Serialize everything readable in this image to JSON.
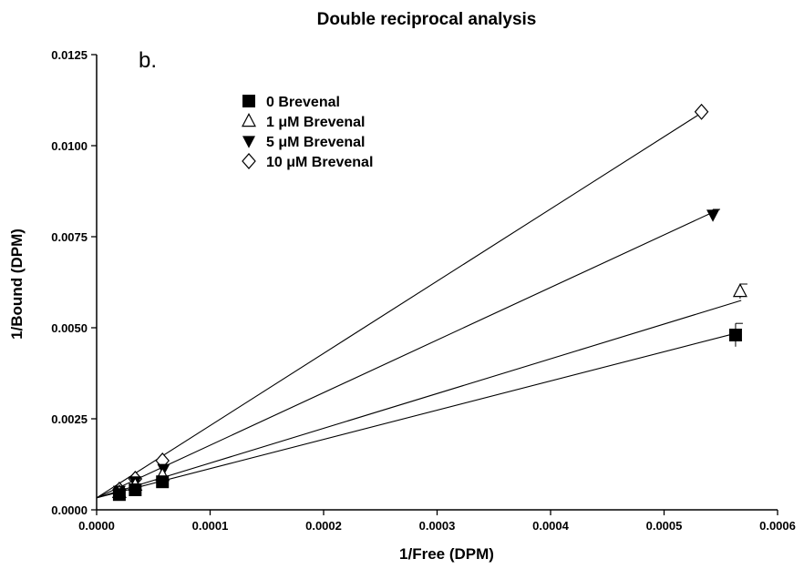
{
  "chart_data": {
    "type": "scatter",
    "title": "Double reciprocal analysis",
    "panel_label": "b.",
    "xlabel": "1/Free (DPM)",
    "ylabel": "1/Bound (DPM)",
    "xlim": [
      0,
      0.0006
    ],
    "ylim": [
      0,
      0.0125
    ],
    "x_ticks": [
      "0.0000",
      "0.0001",
      "0.0002",
      "0.0003",
      "0.0004",
      "0.0005",
      "0.0006"
    ],
    "y_ticks": [
      "0.0000",
      "0.0025",
      "0.0050",
      "0.0075",
      "0.0100",
      "0.0125"
    ],
    "grid": false,
    "legend_position": "top-left",
    "series": [
      {
        "name": "0 Brevenal",
        "marker": "filled-square",
        "points": [
          {
            "x": 2e-05,
            "y": 0.00042
          },
          {
            "x": 3.4e-05,
            "y": 0.00055
          },
          {
            "x": 5.8e-05,
            "y": 0.00077
          },
          {
            "x": 0.000563,
            "y": 0.0048,
            "err": 0.00032
          }
        ],
        "fit": {
          "x0": 0,
          "y0": 0.00033,
          "x1": 0.000566,
          "y1": 0.00487
        }
      },
      {
        "name": "1 μM Brevenal",
        "marker": "open-triangle-up",
        "points": [
          {
            "x": 2e-05,
            "y": 0.00048
          },
          {
            "x": 3.4e-05,
            "y": 0.00068
          },
          {
            "x": 5.8e-05,
            "y": 0.00095
          },
          {
            "x": 0.000567,
            "y": 0.006,
            "err": 0.0002
          }
        ],
        "fit": {
          "x0": 0,
          "y0": 0.00033,
          "x1": 0.000568,
          "y1": 0.00575
        }
      },
      {
        "name": "5 μM Brevenal",
        "marker": "filled-triangle-down",
        "points": [
          {
            "x": 2e-05,
            "y": 0.00052
          },
          {
            "x": 3.4e-05,
            "y": 0.00078
          },
          {
            "x": 5.9e-05,
            "y": 0.00112
          },
          {
            "x": 0.000543,
            "y": 0.0081,
            "err": 0.00015
          }
        ],
        "fit": {
          "x0": 0,
          "y0": 0.00033,
          "x1": 0.000545,
          "y1": 0.0082
        }
      },
      {
        "name": "10 μM Brevenal",
        "marker": "open-diamond",
        "points": [
          {
            "x": 2e-05,
            "y": 0.00055
          },
          {
            "x": 3.4e-05,
            "y": 0.00085
          },
          {
            "x": 5.8e-05,
            "y": 0.00135
          },
          {
            "x": 0.000533,
            "y": 0.01093
          }
        ],
        "fit": {
          "x0": 0,
          "y0": 0.00033,
          "x1": 0.000533,
          "y1": 0.0109
        }
      }
    ]
  }
}
